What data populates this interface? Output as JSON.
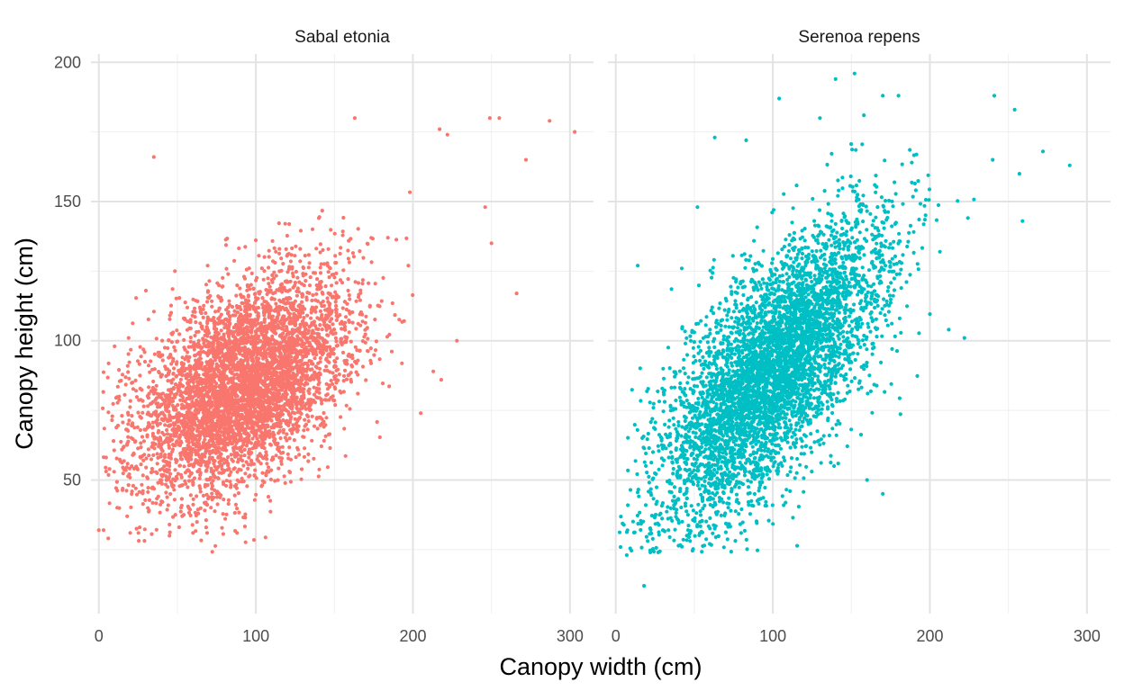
{
  "chart_data": {
    "type": "scatter",
    "xlabel": "Canopy width (cm)",
    "ylabel": "Canopy height (cm)",
    "xlim": [
      -5,
      315
    ],
    "ylim": [
      2,
      203
    ],
    "x_ticks": [
      0,
      100,
      200,
      300
    ],
    "y_ticks": [
      50,
      100,
      150,
      200
    ],
    "grid": true,
    "legend": "none",
    "panels": [
      {
        "title": "Sabal etonia",
        "color": "#F8766D",
        "n_points": 5000,
        "center": [
          92,
          84
        ],
        "spread": [
          34,
          17
        ],
        "slope": 0.27,
        "outliers": [
          [
            3,
            32
          ],
          [
            10,
            98
          ],
          [
            19,
            101
          ],
          [
            35,
            166
          ],
          [
            30,
            118
          ],
          [
            163,
            180
          ],
          [
            222,
            174
          ],
          [
            217,
            176
          ],
          [
            249,
            180
          ],
          [
            255,
            180
          ],
          [
            287,
            179
          ],
          [
            303,
            175
          ],
          [
            272,
            165
          ],
          [
            246,
            148
          ],
          [
            250,
            135
          ],
          [
            266,
            117
          ],
          [
            228,
            100
          ],
          [
            213,
            89
          ],
          [
            218,
            86
          ],
          [
            205,
            74
          ],
          [
            88,
            31
          ],
          [
            60,
            31
          ],
          [
            45,
            30
          ],
          [
            20,
            31
          ],
          [
            6,
            29
          ],
          [
            0,
            32
          ],
          [
            26,
            33
          ],
          [
            69,
            31
          ]
        ]
      },
      {
        "title": "Serenoa repens",
        "color": "#00BFC4",
        "n_points": 5000,
        "center": [
          100,
          90
        ],
        "spread": [
          35,
          19
        ],
        "slope": 0.52,
        "outliers": [
          [
            18,
            12
          ],
          [
            7,
            23
          ],
          [
            14,
            127
          ],
          [
            63,
            173
          ],
          [
            52,
            148
          ],
          [
            152,
            196
          ],
          [
            140,
            194
          ],
          [
            170,
            188
          ],
          [
            180,
            188
          ],
          [
            241,
            188
          ],
          [
            254,
            183
          ],
          [
            272,
            168
          ],
          [
            289,
            163
          ],
          [
            257,
            160
          ],
          [
            259,
            143
          ],
          [
            104,
            187
          ],
          [
            83,
            172
          ],
          [
            130,
            180
          ],
          [
            158,
            181
          ],
          [
            240,
            165
          ],
          [
            139,
            55
          ],
          [
            170,
            45
          ],
          [
            160,
            50
          ],
          [
            22,
            24
          ],
          [
            27,
            24
          ],
          [
            42,
            126
          ],
          [
            60,
            104
          ],
          [
            222,
            101
          ],
          [
            212,
            104
          ]
        ]
      }
    ]
  }
}
